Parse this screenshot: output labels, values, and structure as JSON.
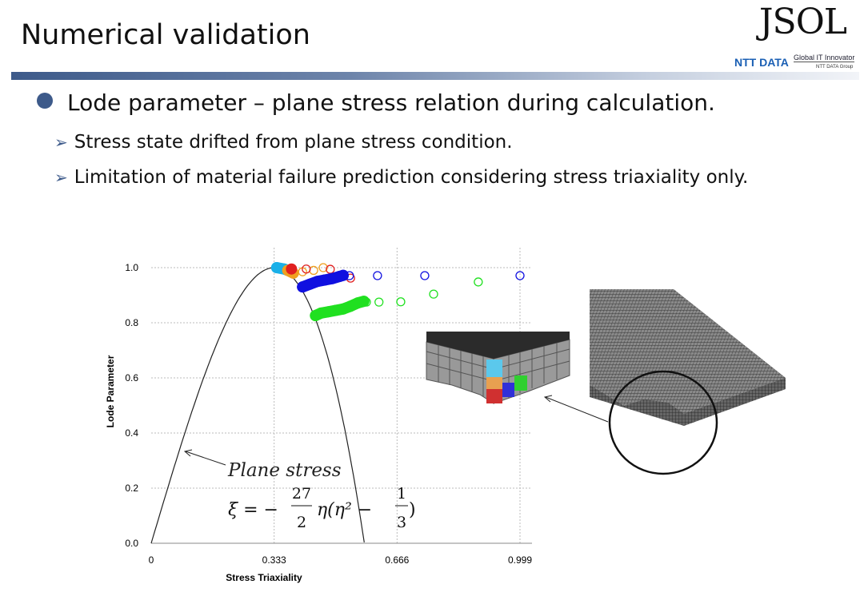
{
  "slide": {
    "title": "Numerical validation",
    "logo": {
      "brand": "JSOL",
      "ntt": "NTT DATA",
      "tagline": "Global IT Innovator",
      "group": "NTT DATA Group"
    },
    "bullet": "Lode parameter – plane stress relation during calculation.",
    "sub_bullets": [
      "Stress state drifted from plane stress condition.",
      "Limitation of material failure prediction considering stress triaxiality only."
    ],
    "annotation": "Plane stress",
    "formula": {
      "lhs": "ξ = −",
      "num1": "27",
      "den1": "2",
      "mid": "η(η² −",
      "num2": "1",
      "den2": "3",
      "end": ")"
    }
  },
  "chart_data": {
    "type": "scatter",
    "xlabel": "Stress Triaxiality",
    "ylabel": "Lode Parameter",
    "xlim": [
      0,
      0.999
    ],
    "ylim": [
      0,
      1.0
    ],
    "xticks": [
      "0",
      "0.333",
      "0.666",
      "0.999"
    ],
    "xtick_values": [
      0,
      0.333,
      0.666,
      0.999
    ],
    "yticks": [
      "0.0",
      "0.2",
      "0.4",
      "0.6",
      "0.8",
      "1.0"
    ],
    "ytick_values": [
      0,
      0.2,
      0.4,
      0.6,
      0.8,
      1.0
    ],
    "grid": true,
    "curve": {
      "name": "Plane stress",
      "equation": "xi = -27/2*eta*(eta^2-1/3)",
      "eta_range": [
        0,
        0.577
      ]
    },
    "series": [
      {
        "name": "cyan element",
        "color": "#1ab0e8",
        "filled": [
          [
            0.34,
            1.0
          ],
          [
            0.36,
            0.995
          ],
          [
            0.37,
            0.99
          ]
        ],
        "open": []
      },
      {
        "name": "orange element",
        "color": "#f0a020",
        "filled": [
          [
            0.37,
            0.99
          ],
          [
            0.385,
            0.98
          ]
        ],
        "open": [
          [
            0.41,
            0.985
          ],
          [
            0.44,
            0.99
          ],
          [
            0.466,
            1.0
          ]
        ]
      },
      {
        "name": "red element",
        "color": "#e02020",
        "filled": [
          [
            0.38,
            0.995
          ]
        ],
        "open": [
          [
            0.42,
            0.995
          ],
          [
            0.485,
            0.994
          ],
          [
            0.54,
            0.962
          ]
        ]
      },
      {
        "name": "blue element",
        "color": "#1010e0",
        "filled": [
          [
            0.41,
            0.93
          ],
          [
            0.43,
            0.94
          ],
          [
            0.45,
            0.95
          ],
          [
            0.47,
            0.955
          ],
          [
            0.49,
            0.96
          ],
          [
            0.51,
            0.968
          ],
          [
            0.52,
            0.972
          ]
        ],
        "open": [
          [
            0.537,
            0.971
          ],
          [
            0.613,
            0.971
          ],
          [
            0.741,
            0.971
          ],
          [
            0.999,
            0.971
          ]
        ]
      },
      {
        "name": "green element",
        "color": "#20e020",
        "filled": [
          [
            0.445,
            0.826
          ],
          [
            0.46,
            0.835
          ],
          [
            0.48,
            0.84
          ],
          [
            0.5,
            0.845
          ],
          [
            0.52,
            0.85
          ],
          [
            0.54,
            0.86
          ],
          [
            0.56,
            0.872
          ],
          [
            0.576,
            0.878
          ]
        ],
        "open": [
          [
            0.583,
            0.875
          ],
          [
            0.617,
            0.875
          ],
          [
            0.676,
            0.876
          ],
          [
            0.765,
            0.904
          ],
          [
            0.886,
            0.948
          ]
        ]
      }
    ]
  }
}
